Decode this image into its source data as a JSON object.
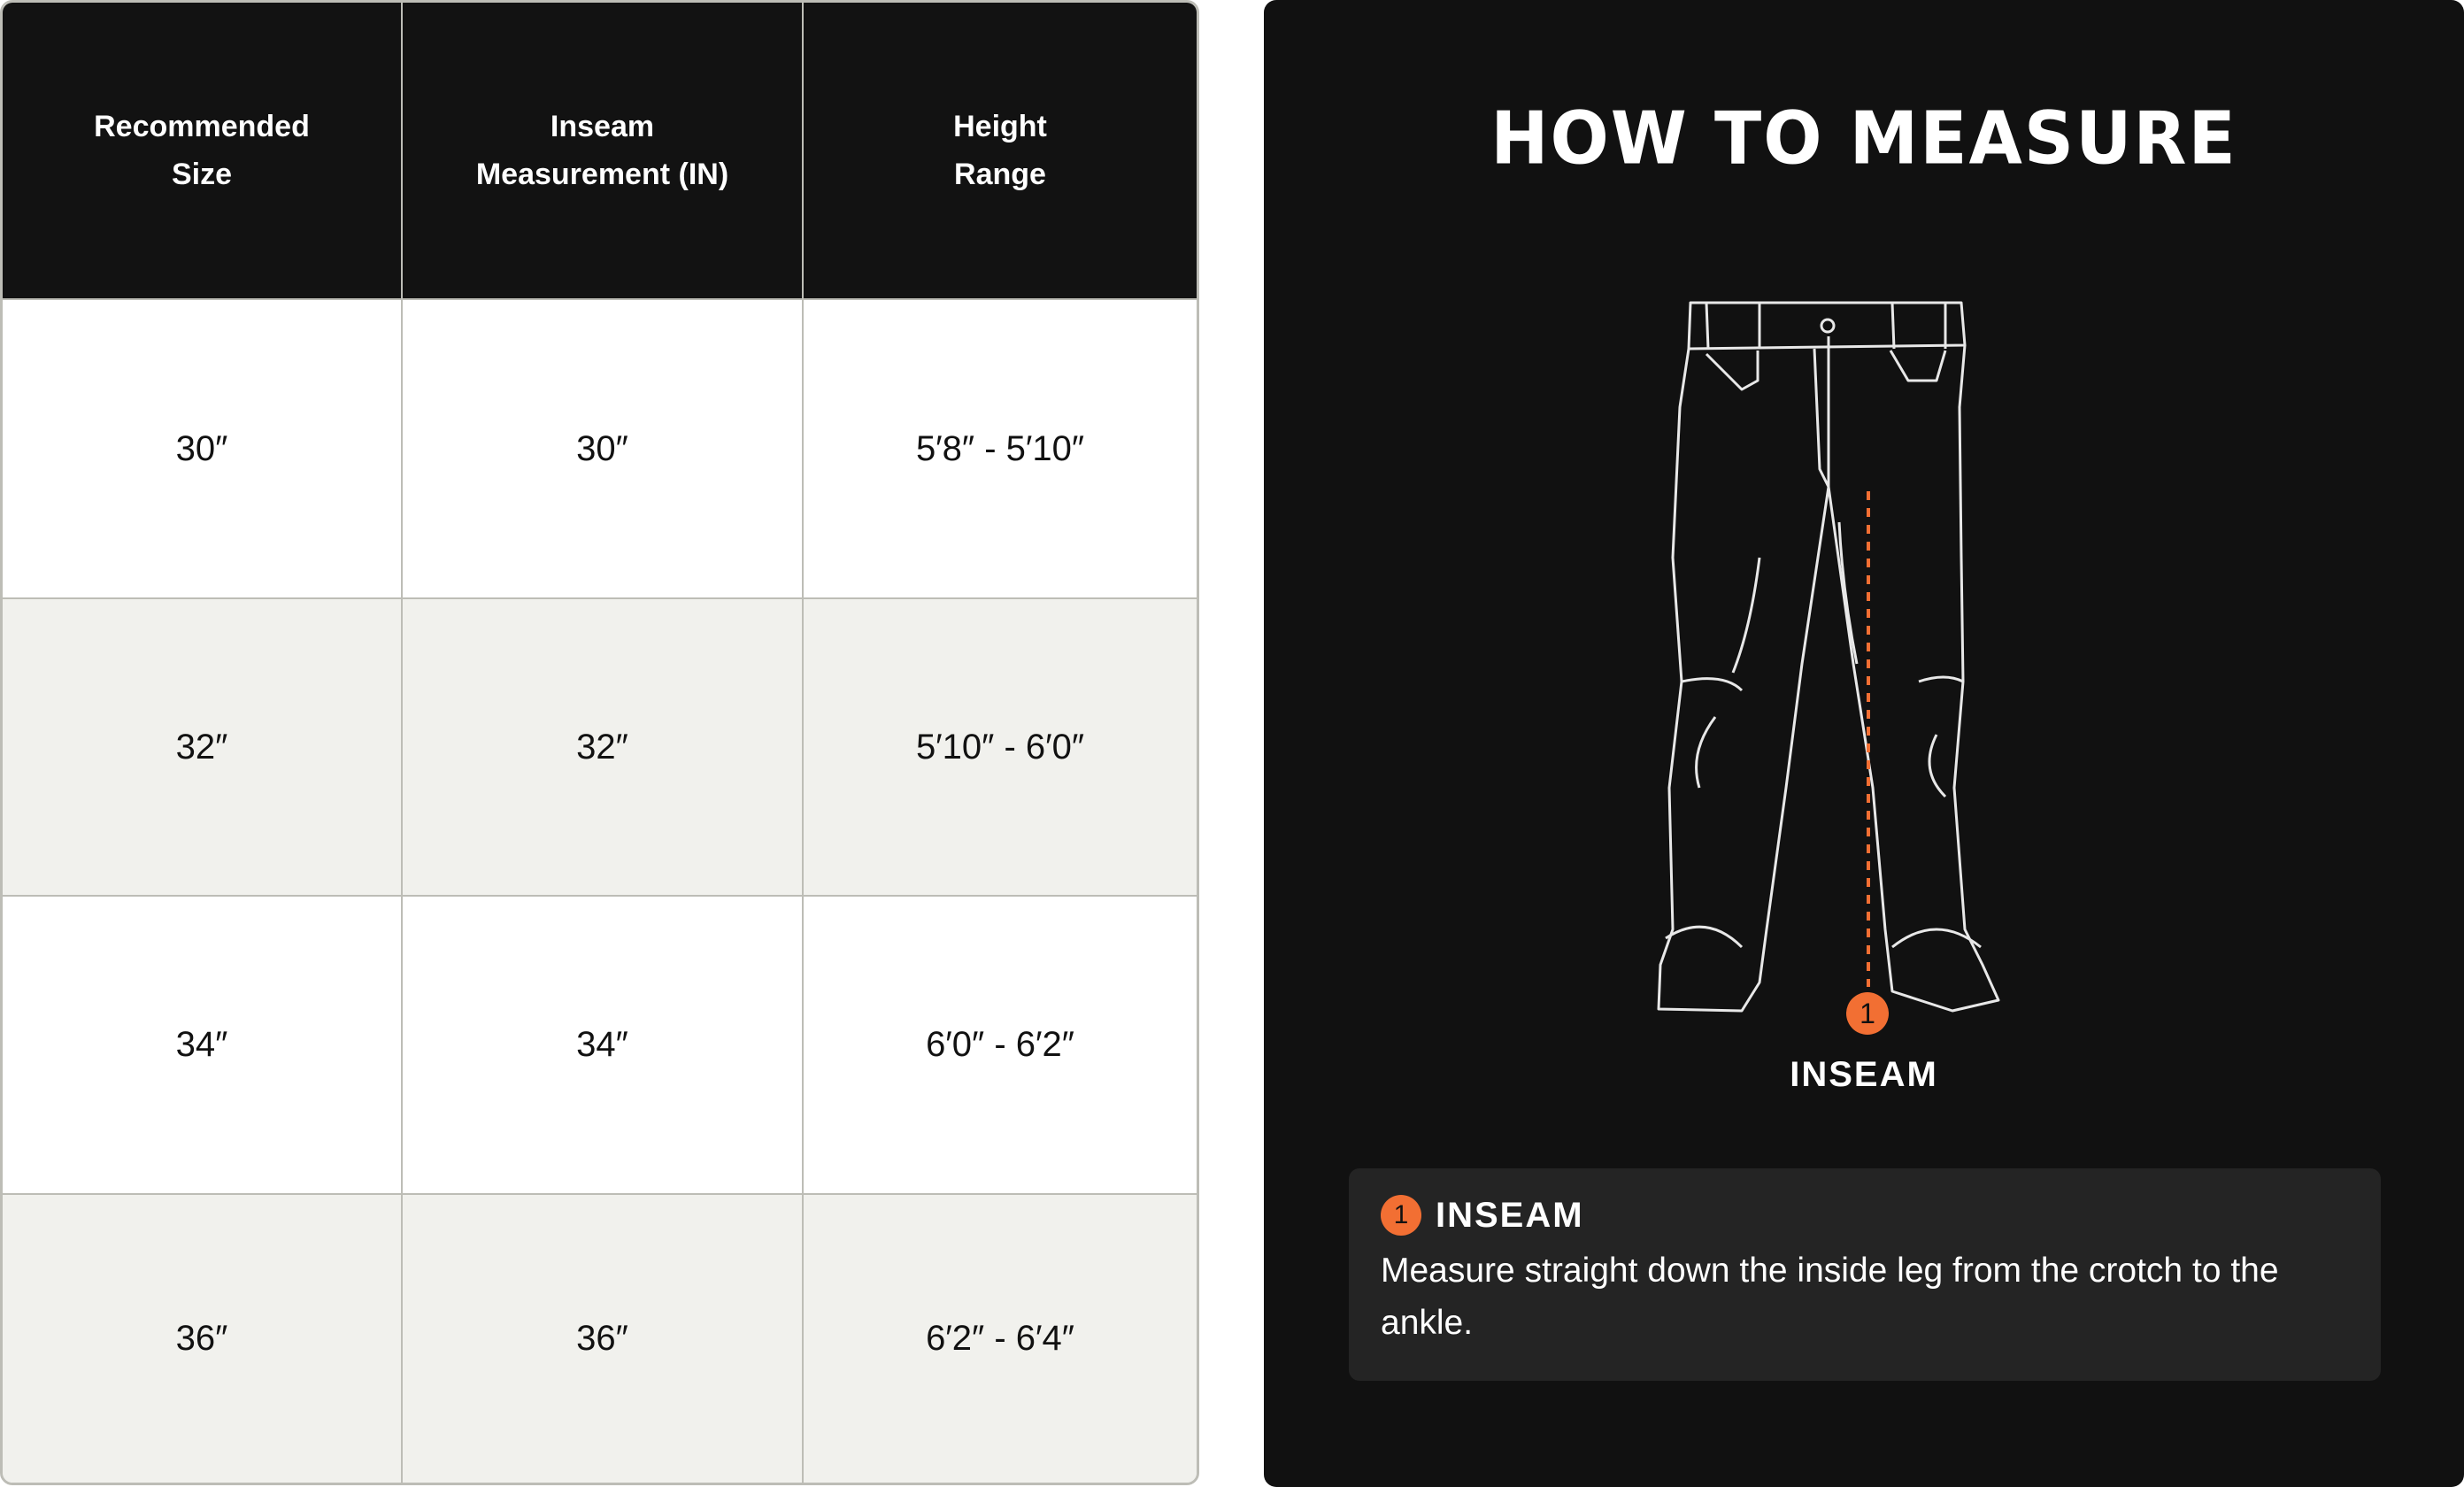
{
  "table": {
    "headers": [
      "Recommended\nSize",
      "Inseam\nMeasurement (IN)",
      "Height\nRange"
    ],
    "rows": [
      [
        "30″",
        "30″",
        "5′8″ - 5′10″"
      ],
      [
        "32″",
        "32″",
        "5′10″ - 6′0″"
      ],
      [
        "34″",
        "34″",
        "6′0″ - 6′2″"
      ],
      [
        "36″",
        "36″",
        "6′2″ - 6′4″"
      ]
    ]
  },
  "guide": {
    "title": "HOW TO MEASURE",
    "marker_number": "1",
    "marker_label": "INSEAM",
    "accent_color": "#f26f33",
    "step": {
      "number": "1",
      "title": "INSEAM",
      "description": "Measure straight down the inside leg from the crotch to the ankle."
    }
  }
}
